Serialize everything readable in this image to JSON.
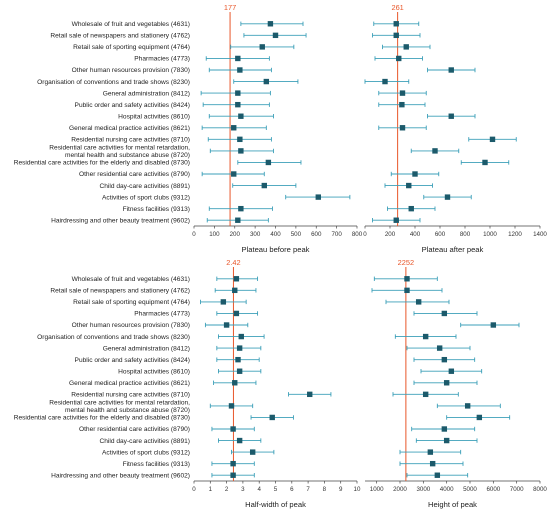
{
  "chart_data": {
    "type": "forest",
    "rows": [
      "Wholesale of fruit and vegetables (4631)",
      "Retail sale of newspapers and stationery (4762)",
      "Retail sale of sporting equipment (4764)",
      "Pharmacies (4773)",
      "Other human resources provision (7830)",
      "Organisation of conventions and trade shows (8230)",
      "General administration (8412)",
      "Public order and safety activities (8424)",
      "Hospital activities (8610)",
      "General medical practice activities (8621)",
      "Residential nursing care activities (8710)",
      "Residential care activities for mental retardation,\nmental health and substance abuse (8720)",
      "Residential care activities for the elderly and disabled (8730)",
      "Other residential care activities (8790)",
      "Child day-care activities (8891)",
      "Activities of sport clubs (9312)",
      "Fitness facilities (9313)",
      "Hairdressing and other beauty treatment (9602)"
    ],
    "panels": [
      {
        "xlabel": "Plateau before peak",
        "xlim": [
          0,
          800
        ],
        "xticks": [
          0,
          100,
          200,
          300,
          400,
          500,
          600,
          700,
          800
        ],
        "ref": 177,
        "ref_label": "177",
        "estimates": [
          375,
          400,
          335,
          215,
          225,
          355,
          215,
          215,
          230,
          195,
          225,
          230,
          365,
          195,
          345,
          610,
          230,
          215
        ],
        "lower": [
          230,
          245,
          180,
          60,
          75,
          195,
          35,
          45,
          75,
          40,
          70,
          80,
          215,
          40,
          190,
          450,
          75,
          65
        ],
        "upper": [
          535,
          550,
          490,
          370,
          380,
          510,
          375,
          370,
          390,
          355,
          380,
          390,
          525,
          345,
          500,
          765,
          385,
          365
        ]
      },
      {
        "xlabel": "Plateau after peak",
        "xlim": [
          0,
          1400
        ],
        "xticks": [
          0,
          200,
          400,
          600,
          800,
          1000,
          1200,
          1400
        ],
        "ref": 261,
        "ref_label": "261",
        "estimates": [
          250,
          250,
          330,
          270,
          690,
          160,
          300,
          295,
          690,
          300,
          1020,
          560,
          960,
          400,
          350,
          660,
          370,
          250
        ],
        "lower": [
          70,
          60,
          140,
          80,
          500,
          -30,
          110,
          110,
          500,
          110,
          830,
          370,
          770,
          210,
          160,
          470,
          180,
          60
        ],
        "upper": [
          430,
          440,
          520,
          460,
          880,
          350,
          490,
          480,
          880,
          490,
          1210,
          750,
          1150,
          590,
          540,
          850,
          560,
          440
        ]
      },
      {
        "xlabel": "Half-width of peak",
        "xlim": [
          0,
          10
        ],
        "xticks": [
          0,
          1,
          2,
          3,
          4,
          5,
          6,
          7,
          8,
          9,
          10
        ],
        "ref": 2.42,
        "ref_label": "2.42",
        "estimates": [
          2.6,
          2.5,
          1.8,
          2.6,
          2.0,
          2.9,
          2.8,
          2.7,
          2.8,
          2.5,
          7.1,
          2.3,
          4.8,
          2.4,
          2.8,
          3.6,
          2.4,
          2.4
        ],
        "lower": [
          1.4,
          1.3,
          0.4,
          1.4,
          0.7,
          1.5,
          1.4,
          1.4,
          1.5,
          1.2,
          5.8,
          1.0,
          3.5,
          1.1,
          1.5,
          2.3,
          1.1,
          1.1
        ],
        "upper": [
          3.9,
          3.8,
          3.2,
          3.9,
          3.3,
          4.3,
          4.1,
          4.0,
          4.1,
          3.8,
          8.4,
          3.6,
          6.1,
          3.7,
          4.1,
          4.9,
          3.7,
          3.7
        ]
      },
      {
        "xlabel": "Height of peak",
        "xlim": [
          500,
          8000
        ],
        "xticks": [
          1000,
          2000,
          3000,
          4000,
          5000,
          6000,
          7000,
          8000
        ],
        "ref": 2252,
        "ref_label": "2252",
        "estimates": [
          2300,
          2300,
          2800,
          3900,
          6000,
          3100,
          3700,
          3900,
          4200,
          4000,
          3100,
          4900,
          5400,
          3900,
          4000,
          3300,
          3400,
          3600
        ],
        "lower": [
          900,
          800,
          1400,
          2600,
          4600,
          1800,
          2300,
          2600,
          2900,
          2600,
          1700,
          3600,
          4000,
          2500,
          2700,
          2000,
          2000,
          2300
        ],
        "upper": [
          3600,
          3800,
          4100,
          5300,
          7100,
          4400,
          5000,
          5200,
          5500,
          5300,
          4500,
          6300,
          6700,
          5200,
          5300,
          4600,
          4700,
          4900
        ]
      }
    ]
  },
  "colors": {
    "marker": "#1c5a6b",
    "ci": "#3b9fb8",
    "reference": "#e8562a",
    "axis": "#444444",
    "text": "#222222"
  }
}
